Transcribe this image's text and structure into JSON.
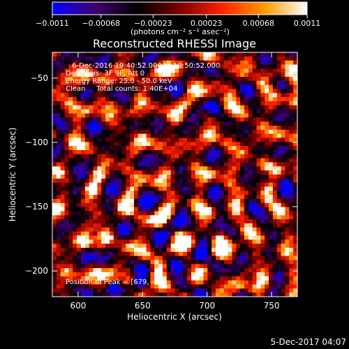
{
  "chart_data": {
    "type": "heatmap",
    "title": "Reconstructed RHESSI Image",
    "xlabel": "Heliocentric X (arcsec)",
    "ylabel": "Heliocentric Y (arcsec)",
    "xlim": [
      580,
      770
    ],
    "ylim": [
      -220,
      -30
    ],
    "x_ticks": [
      600,
      650,
      700,
      750
    ],
    "y_ticks": [
      -50,
      -100,
      -150,
      -200
    ],
    "x_tick_labels": [
      "600",
      "650",
      "700",
      "750"
    ],
    "y_tick_labels": [
      "−50",
      "−100",
      "−150",
      "−200"
    ],
    "colorbar": {
      "min": -0.0011,
      "max": 0.0011,
      "tick_values": [
        -0.0011,
        -0.00068,
        -0.00023,
        0.00023,
        0.00068,
        0.0011
      ],
      "tick_labels": [
        "−0.0011",
        "−0.00068",
        "−0.00023",
        "0.00023",
        "0.00068",
        "0.0011"
      ],
      "unit_label": "(photons cm⁻² s⁻¹ asec⁻²)",
      "colors": [
        "#0000ff",
        "#400070",
        "#000000",
        "#7a0000",
        "#ff2000",
        "#ff9a00",
        "#ffffff"
      ]
    },
    "annotations": [
      "6-Dec-2016 19:40:52.000 to 19:50:52.000",
      "Detectors: 3F 9F, Att 0",
      "Energy Range: 25.0 - 50.0 keV",
      "Clean     Total counts: 1.40E+04"
    ],
    "peak_annotation": "Position of Peak = [679, -61]",
    "peak": {
      "x": 679,
      "y": -61
    },
    "footer": "5-Dec-2017 04:07",
    "grid": false,
    "pattern_note": "clean-residual ring pattern; intensities not individually recoverable"
  }
}
